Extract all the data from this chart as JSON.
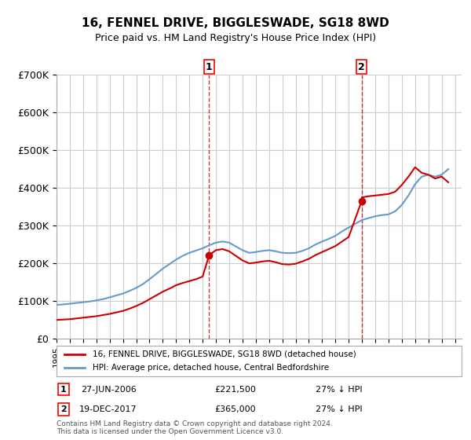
{
  "title": "16, FENNEL DRIVE, BIGGLESWADE, SG18 8WD",
  "subtitle": "Price paid vs. HM Land Registry's House Price Index (HPI)",
  "legend_line1": "16, FENNEL DRIVE, BIGGLESWADE, SG18 8WD (detached house)",
  "legend_line2": "HPI: Average price, detached house, Central Bedfordshire",
  "footnote": "Contains HM Land Registry data © Crown copyright and database right 2024.\nThis data is licensed under the Open Government Licence v3.0.",
  "sale1_label": "1",
  "sale1_date": "27-JUN-2006",
  "sale1_price": "£221,500",
  "sale1_hpi": "27% ↓ HPI",
  "sale1_year": 2006.49,
  "sale1_value": 221500,
  "sale2_label": "2",
  "sale2_date": "19-DEC-2017",
  "sale2_price": "£365,000",
  "sale2_hpi": "27% ↓ HPI",
  "sale2_year": 2017.97,
  "sale2_value": 365000,
  "ylim": [
    0,
    700000
  ],
  "yticks": [
    0,
    100000,
    200000,
    300000,
    400000,
    500000,
    600000,
    700000
  ],
  "ytick_labels": [
    "£0",
    "£100K",
    "£200K",
    "£300K",
    "£400K",
    "£500K",
    "£600K",
    "£700K"
  ],
  "hpi_color": "#6699cc",
  "price_color": "#cc0000",
  "vline_color": "#cc0000",
  "grid_color": "#cccccc",
  "background_color": "#ffffff",
  "hpi_x": [
    1995,
    1995.5,
    1996,
    1996.5,
    1997,
    1997.5,
    1998,
    1998.5,
    1999,
    1999.5,
    2000,
    2000.5,
    2001,
    2001.5,
    2002,
    2002.5,
    2003,
    2003.5,
    2004,
    2004.5,
    2005,
    2005.5,
    2006,
    2006.5,
    2007,
    2007.5,
    2008,
    2008.5,
    2009,
    2009.5,
    2010,
    2010.5,
    2011,
    2011.5,
    2012,
    2012.5,
    2013,
    2013.5,
    2014,
    2014.5,
    2015,
    2015.5,
    2016,
    2016.5,
    2017,
    2017.5,
    2018,
    2018.5,
    2019,
    2019.5,
    2020,
    2020.5,
    2021,
    2021.5,
    2022,
    2022.5,
    2023,
    2023.5,
    2024,
    2024.5
  ],
  "hpi_y": [
    90000,
    91000,
    93000,
    95000,
    97000,
    99000,
    102000,
    105000,
    110000,
    115000,
    120000,
    127000,
    135000,
    145000,
    158000,
    172000,
    186000,
    198000,
    210000,
    220000,
    228000,
    234000,
    240000,
    248000,
    255000,
    258000,
    255000,
    245000,
    235000,
    228000,
    230000,
    233000,
    235000,
    232000,
    228000,
    227000,
    228000,
    233000,
    240000,
    250000,
    258000,
    265000,
    273000,
    285000,
    295000,
    305000,
    315000,
    320000,
    325000,
    328000,
    330000,
    338000,
    355000,
    380000,
    410000,
    430000,
    435000,
    430000,
    435000,
    450000
  ],
  "red_x": [
    1995,
    1995.5,
    1996,
    1996.5,
    1997,
    1997.5,
    1998,
    1998.5,
    1999,
    1999.5,
    2000,
    2000.5,
    2001,
    2001.5,
    2002,
    2002.5,
    2003,
    2003.5,
    2004,
    2004.5,
    2005,
    2005.5,
    2006,
    2006.49,
    2007,
    2007.5,
    2008,
    2008.5,
    2009,
    2009.5,
    2010,
    2010.5,
    2011,
    2011.5,
    2012,
    2012.5,
    2013,
    2013.5,
    2014,
    2014.5,
    2015,
    2015.5,
    2016,
    2016.5,
    2017,
    2017.97,
    2018,
    2018.5,
    2019,
    2019.5,
    2020,
    2020.5,
    2021,
    2021.5,
    2022,
    2022.5,
    2023,
    2023.5,
    2024,
    2024.5
  ],
  "red_y": [
    50000,
    51000,
    52000,
    54000,
    56000,
    58000,
    60000,
    63000,
    66000,
    70000,
    74000,
    80000,
    87000,
    95000,
    105000,
    115000,
    125000,
    133000,
    142000,
    148000,
    153000,
    158000,
    165000,
    221500,
    235000,
    238000,
    232000,
    220000,
    208000,
    200000,
    202000,
    205000,
    207000,
    203000,
    198000,
    197000,
    199000,
    205000,
    212000,
    222000,
    230000,
    238000,
    246000,
    258000,
    270000,
    365000,
    375000,
    378000,
    380000,
    382000,
    384000,
    390000,
    408000,
    430000,
    455000,
    440000,
    435000,
    425000,
    430000,
    415000
  ]
}
